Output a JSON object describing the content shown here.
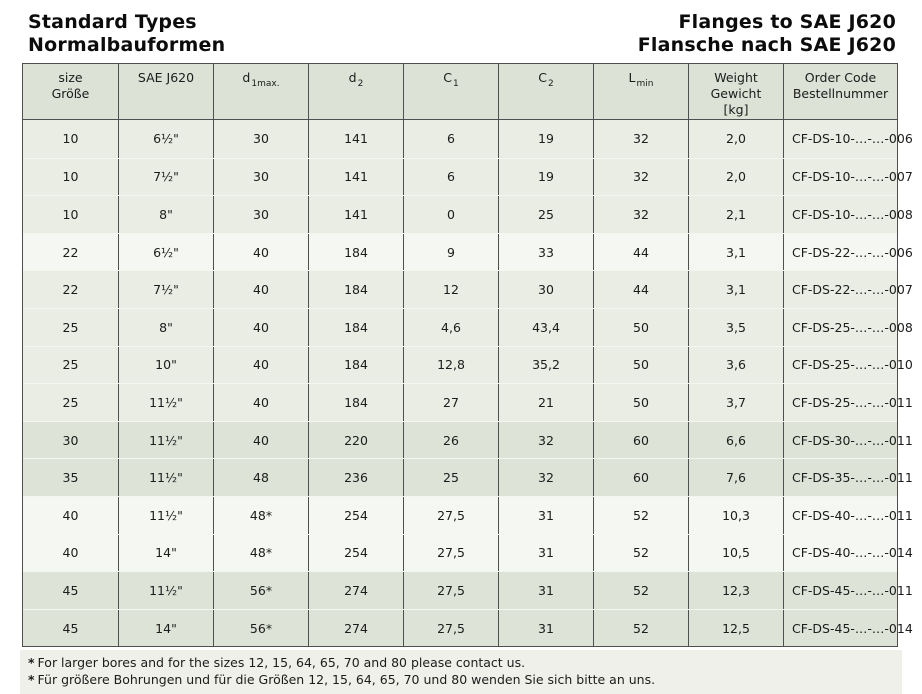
{
  "titles": {
    "left_line1": "Standard Types",
    "left_line2": "Normalbauformen",
    "right_line1": "Flanges to SAE J620",
    "right_line2": "Flansche nach SAE J620"
  },
  "table": {
    "columns": [
      {
        "id": "size",
        "lines": [
          "size",
          "Größe"
        ]
      },
      {
        "id": "sae-j620",
        "lines": [
          "SAE J620"
        ]
      },
      {
        "id": "d1max",
        "main": "d",
        "sub": "1max."
      },
      {
        "id": "d2",
        "main": "d",
        "sub": "2"
      },
      {
        "id": "c1",
        "main": "C",
        "sub": "1"
      },
      {
        "id": "c2",
        "main": "C",
        "sub": "2"
      },
      {
        "id": "lmin",
        "main": "L",
        "sub": "min"
      },
      {
        "id": "weight",
        "lines": [
          "Weight",
          "Gewicht",
          "[kg]"
        ]
      },
      {
        "id": "order-code",
        "lines": [
          "Order Code",
          "Bestellnummer"
        ]
      }
    ],
    "rows": [
      {
        "shade": "mid",
        "cells": [
          "10",
          "6½\"",
          "30",
          "141",
          "6",
          "19",
          "32",
          "2,0",
          "CF-DS-10-…-…-006"
        ]
      },
      {
        "shade": "mid",
        "cells": [
          "10",
          "7½\"",
          "30",
          "141",
          "6",
          "19",
          "32",
          "2,0",
          "CF-DS-10-…-…-007"
        ]
      },
      {
        "shade": "mid",
        "cells": [
          "10",
          "8\"",
          "30",
          "141",
          "0",
          "25",
          "32",
          "2,1",
          "CF-DS-10-…-…-008"
        ]
      },
      {
        "shade": "light",
        "cells": [
          "22",
          "6½\"",
          "40",
          "184",
          "9",
          "33",
          "44",
          "3,1",
          "CF-DS-22-…-…-006"
        ]
      },
      {
        "shade": "mid",
        "cells": [
          "22",
          "7½\"",
          "40",
          "184",
          "12",
          "30",
          "44",
          "3,1",
          "CF-DS-22-…-…-007"
        ]
      },
      {
        "shade": "mid",
        "cells": [
          "25",
          "8\"",
          "40",
          "184",
          "4,6",
          "43,4",
          "50",
          "3,5",
          "CF-DS-25-…-…-008"
        ]
      },
      {
        "shade": "mid",
        "cells": [
          "25",
          "10\"",
          "40",
          "184",
          "12,8",
          "35,2",
          "50",
          "3,6",
          "CF-DS-25-…-…-010"
        ]
      },
      {
        "shade": "mid",
        "cells": [
          "25",
          "11½\"",
          "40",
          "184",
          "27",
          "21",
          "50",
          "3,7",
          "CF-DS-25-…-…-011"
        ]
      },
      {
        "shade": "dark",
        "cells": [
          "30",
          "11½\"",
          "40",
          "220",
          "26",
          "32",
          "60",
          "6,6",
          "CF-DS-30-…-…-011"
        ]
      },
      {
        "shade": "dark",
        "cells": [
          "35",
          "11½\"",
          "48",
          "236",
          "25",
          "32",
          "60",
          "7,6",
          "CF-DS-35-…-…-011"
        ]
      },
      {
        "shade": "light",
        "cells": [
          "40",
          "11½\"",
          "48*",
          "254",
          "27,5",
          "31",
          "52",
          "10,3",
          "CF-DS-40-…-…-011"
        ]
      },
      {
        "shade": "light",
        "cells": [
          "40",
          "14\"",
          "48*",
          "254",
          "27,5",
          "31",
          "52",
          "10,5",
          "CF-DS-40-…-…-014"
        ]
      },
      {
        "shade": "dark",
        "cells": [
          "45",
          "11½\"",
          "56*",
          "274",
          "27,5",
          "31",
          "52",
          "12,3",
          "CF-DS-45-…-…-011"
        ]
      },
      {
        "shade": "dark",
        "cells": [
          "45",
          "14\"",
          "56*",
          "274",
          "27,5",
          "31",
          "52",
          "12,5",
          "CF-DS-45-…-…-014"
        ]
      }
    ]
  },
  "footnotes": {
    "marker": "*",
    "lines": [
      "For larger bores and for the sizes 12, 15, 64, 65, 70 and 80 please contact us.",
      "Für größere Bohrungen und für die Größen 12, 15, 64, 65, 70 und 80 wenden Sie sich bitte an uns."
    ]
  },
  "colors": {
    "header_bg": "#dce2d5",
    "row_mid": "#e9ede4",
    "row_light": "#f5f7f2",
    "row_dark": "#dee3d7",
    "footnote_bg": "#eef0e9",
    "border_dark": "#4f4f4f",
    "row_divider": "#f3f5ef",
    "text": "#1c1c1c"
  }
}
